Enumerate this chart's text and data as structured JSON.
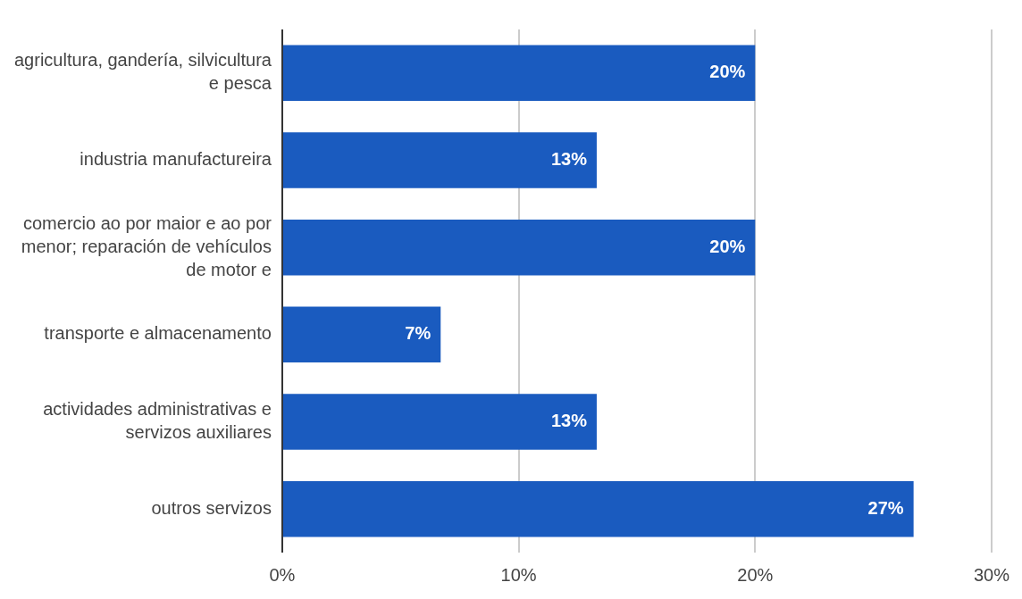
{
  "chart_data": {
    "type": "bar",
    "orientation": "horizontal",
    "categories": [
      "agricultura, gandería, silvicultura e pesca",
      "industria manufactureira",
      "comercio ao por maior e ao por menor; reparación de vehículos de motor e",
      "transporte e almacenamento",
      "actividades administrativas e servizos auxiliares",
      "outros servizos"
    ],
    "values": [
      20,
      13.3,
      20,
      6.7,
      13.3,
      26.7
    ],
    "value_labels": [
      "20%",
      "13%",
      "20%",
      "7%",
      "13%",
      "27%"
    ],
    "color": "#1a5bbf",
    "xlim": [
      0,
      30
    ],
    "xticks": [
      {
        "value": 0,
        "label": "0%"
      },
      {
        "value": 10,
        "label": "10%"
      },
      {
        "value": 20,
        "label": "20%"
      },
      {
        "value": 30,
        "label": "30%"
      }
    ],
    "grid": "x",
    "legend": false
  }
}
